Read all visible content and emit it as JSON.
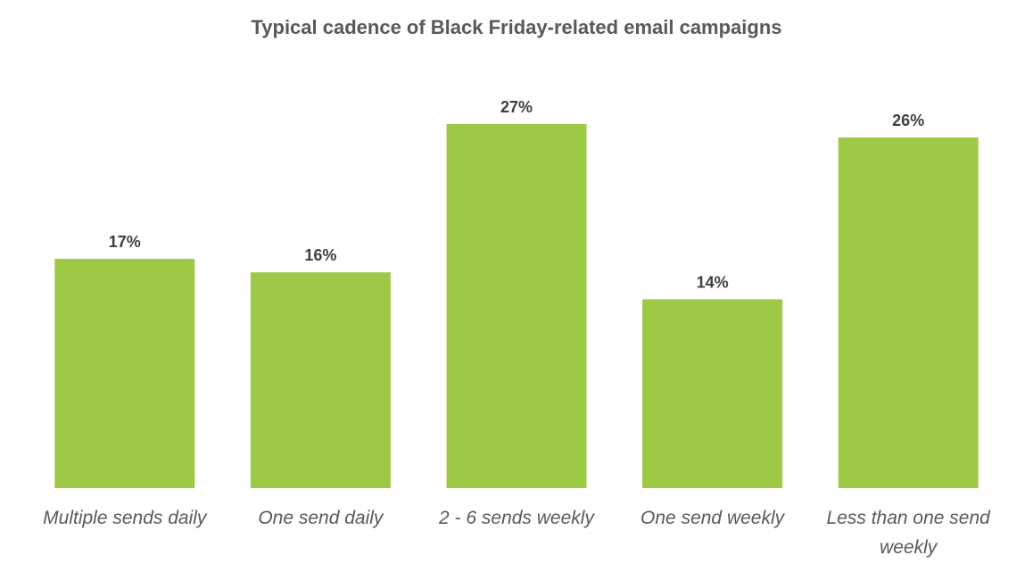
{
  "chart_data": {
    "type": "bar",
    "title": "Typical cadence of Black Friday-related email campaigns",
    "categories": [
      [
        "Multiple sends daily"
      ],
      [
        "One send daily"
      ],
      [
        "2 - 6 sends weekly"
      ],
      [
        "One send weekly"
      ],
      [
        "Less than one send",
        "weekly"
      ]
    ],
    "values": [
      17,
      16,
      27,
      14,
      26
    ],
    "value_labels": [
      "17%",
      "16%",
      "27%",
      "14%",
      "26%"
    ],
    "ylim": [
      0,
      27
    ],
    "grid": false,
    "legend": "none",
    "bar_color": "#9dc947"
  }
}
